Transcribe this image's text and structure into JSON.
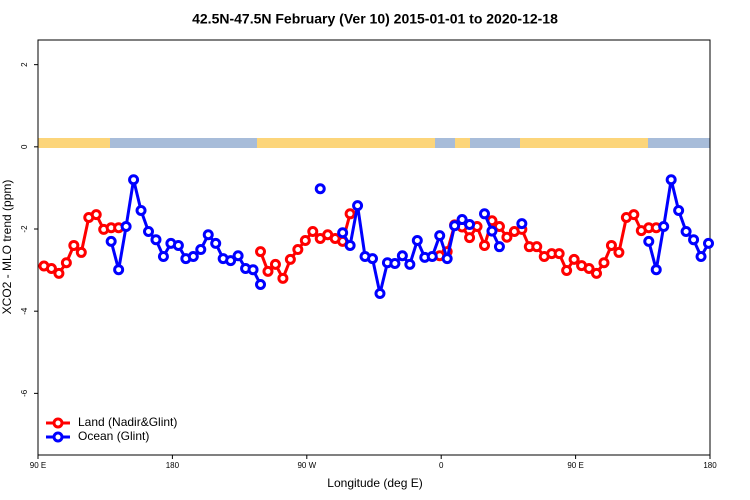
{
  "chart_data": {
    "type": "line",
    "title": "42.5N-47.5N February (Ver 10)   2015-01-01 to 2020-12-18",
    "x_label": "Longitude (deg E)",
    "y_label": "XCO2 - MLO trend (ppm)",
    "xlim": [
      90,
      540
    ],
    "ylim": [
      -7.5,
      2.6
    ],
    "xticks": [
      {
        "value": 90,
        "label": "90 E"
      },
      180,
      {
        "value": 270,
        "label": "90 W"
      },
      {
        "value": 360,
        "label": "0"
      },
      {
        "value": 450,
        "label": "90 E"
      },
      {
        "value": 540,
        "label": "180"
      }
    ],
    "yticks": [
      2,
      0,
      -2,
      -4,
      -6
    ],
    "legend": "bottom-left",
    "x": [
      94,
      99,
      104,
      109,
      114,
      119,
      124,
      129,
      134,
      139,
      144,
      149,
      154,
      159,
      164,
      169,
      174,
      179,
      184,
      189,
      194,
      199,
      204,
      209,
      214,
      219,
      224,
      229,
      234,
      239,
      244,
      249,
      254,
      259,
      264,
      269,
      274,
      279,
      284,
      289,
      294,
      299,
      304,
      309,
      314,
      319,
      324,
      329,
      334,
      339,
      344,
      349,
      354,
      359,
      364,
      369,
      374,
      379,
      384,
      389,
      394,
      399,
      404,
      409,
      414,
      419,
      424,
      429,
      434,
      439,
      444,
      449,
      454,
      459,
      464,
      469,
      474,
      479,
      484,
      489,
      494,
      499,
      504,
      509,
      514,
      519,
      524,
      529,
      534,
      539
    ],
    "series": [
      {
        "name": "Land (Nadir&Glint)",
        "color": "#ff0000",
        "values": [
          -2.9,
          -2.96,
          -3.08,
          -2.82,
          -2.4,
          -2.57,
          -1.72,
          -1.65,
          -2.01,
          -1.97,
          -1.97,
          null,
          null,
          null,
          null,
          null,
          null,
          null,
          null,
          null,
          null,
          null,
          null,
          null,
          null,
          null,
          null,
          null,
          null,
          -2.55,
          -3.03,
          -2.86,
          -3.2,
          -2.74,
          -2.5,
          -2.28,
          -2.06,
          -2.23,
          -2.14,
          -2.23,
          -2.3,
          -1.63,
          null,
          null,
          null,
          null,
          null,
          null,
          null,
          null,
          null,
          null,
          null,
          -2.65,
          -2.55,
          -1.9,
          -1.95,
          -2.21,
          -1.94,
          -2.4,
          -1.8,
          -1.94,
          -2.2,
          -2.06,
          -2.01,
          -2.43,
          -2.43,
          -2.67,
          -2.6,
          -2.6,
          -3.01,
          -2.74,
          -2.89,
          -2.96,
          -3.08,
          -2.82,
          -2.4,
          -2.57,
          -1.72,
          -1.65,
          -2.04,
          -1.97,
          -1.97,
          null,
          null,
          null,
          null,
          null,
          null,
          null
        ]
      },
      {
        "name": "Ocean (Glint)",
        "color": "#0000ff",
        "values": [
          null,
          null,
          null,
          null,
          null,
          null,
          null,
          null,
          null,
          -2.3,
          -2.99,
          -1.94,
          -0.8,
          -1.55,
          -2.06,
          -2.26,
          -2.67,
          -2.35,
          -2.4,
          -2.72,
          -2.67,
          -2.5,
          -2.14,
          -2.35,
          -2.72,
          -2.77,
          -2.65,
          -2.96,
          -2.99,
          -3.35,
          null,
          null,
          null,
          null,
          null,
          null,
          null,
          -1.02,
          null,
          null,
          -2.09,
          -2.4,
          -1.43,
          -2.67,
          -2.72,
          -3.57,
          -2.82,
          -2.84,
          -2.65,
          -2.86,
          -2.28,
          -2.69,
          -2.67,
          -2.16,
          -2.72,
          -1.92,
          -1.77,
          -1.89,
          null,
          -1.63,
          -2.05,
          -2.43,
          null,
          null,
          -1.87,
          null,
          null,
          null,
          null,
          null,
          null,
          null,
          null,
          null,
          null,
          null,
          null,
          null,
          null,
          null,
          null,
          -2.3,
          -2.99,
          -1.94,
          -0.8,
          -1.55,
          -2.06,
          -2.26,
          -2.67,
          -2.35
        ]
      }
    ]
  }
}
